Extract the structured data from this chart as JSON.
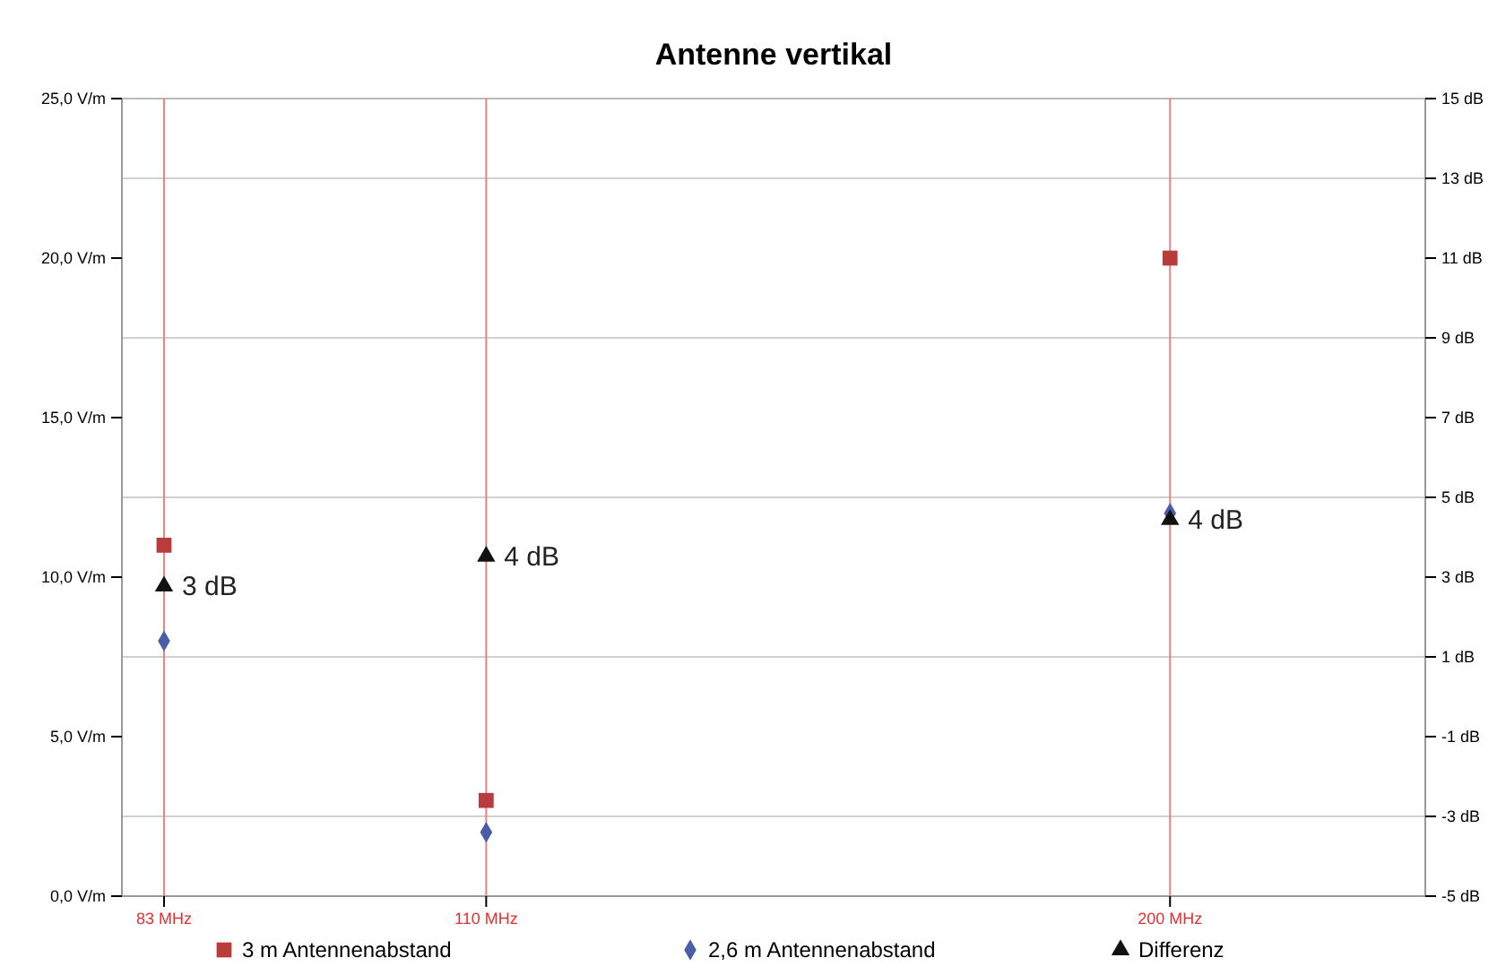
{
  "chart_data": {
    "type": "scatter",
    "title": "Antenne vertikal",
    "x": [
      83,
      110,
      200
    ],
    "log": "x",
    "xlim": [
      80,
      250
    ],
    "xticks": [
      {
        "value": 83,
        "label": "83 MHz"
      },
      {
        "value": 110,
        "label": "110 MHz"
      },
      {
        "value": 200,
        "label": "200 MHz"
      }
    ],
    "ylim": [
      0,
      25
    ],
    "yticks": [
      {
        "value": 0,
        "label": "0,0 V/m"
      },
      {
        "value": 5,
        "label": "5,0 V/m"
      },
      {
        "value": 10,
        "label": "10,0 V/m"
      },
      {
        "value": 15,
        "label": "15,0 V/m"
      },
      {
        "value": 20,
        "label": "20,0 V/m"
      },
      {
        "value": 25,
        "label": "25,0 V/m"
      }
    ],
    "y2lim": [
      -5,
      15
    ],
    "y2ticks": [
      {
        "value": -5,
        "label": "-5 dB"
      },
      {
        "value": -3,
        "label": "-3 dB"
      },
      {
        "value": -1,
        "label": "-1 dB"
      },
      {
        "value": 1,
        "label": "1 dB"
      },
      {
        "value": 3,
        "label": "3 dB"
      },
      {
        "value": 5,
        "label": "5 dB"
      },
      {
        "value": 7,
        "label": "7 dB"
      },
      {
        "value": 9,
        "label": "9 dB"
      },
      {
        "value": 11,
        "label": "11 dB"
      },
      {
        "value": 13,
        "label": "13 dB"
      },
      {
        "value": 15,
        "label": "15 dB"
      }
    ],
    "grid": "x",
    "ref_lines": [
      {
        "axis": "y",
        "value": 2.5,
        "color": "#d0d0d0"
      },
      {
        "axis": "y",
        "value": 7.5,
        "color": "#d0d0d0"
      },
      {
        "axis": "y",
        "value": 12.5,
        "color": "#d0d0d0"
      },
      {
        "axis": "y",
        "value": 17.5,
        "color": "#d0d0d0"
      },
      {
        "axis": "y",
        "value": 22.5,
        "color": "#d0d0d0"
      }
    ],
    "legend": "bottom",
    "series": [
      {
        "name": "3 m Antennenabstand",
        "color": "#b83c3c",
        "marker": "square",
        "values": [
          11.0,
          3.0,
          20.0
        ]
      },
      {
        "name": "2,6 m Antennenabstand",
        "color": "#4a5ea8",
        "marker": "diamond",
        "values": [
          8.0,
          2.0,
          12.0
        ]
      },
      {
        "name": "Differenz",
        "color": "#111111",
        "marker": "triangle",
        "axis": "y2",
        "values": [
          2.77,
          3.52,
          4.44
        ],
        "value_labels": [
          "3 dB",
          "4 dB",
          "4 dB"
        ]
      }
    ]
  }
}
